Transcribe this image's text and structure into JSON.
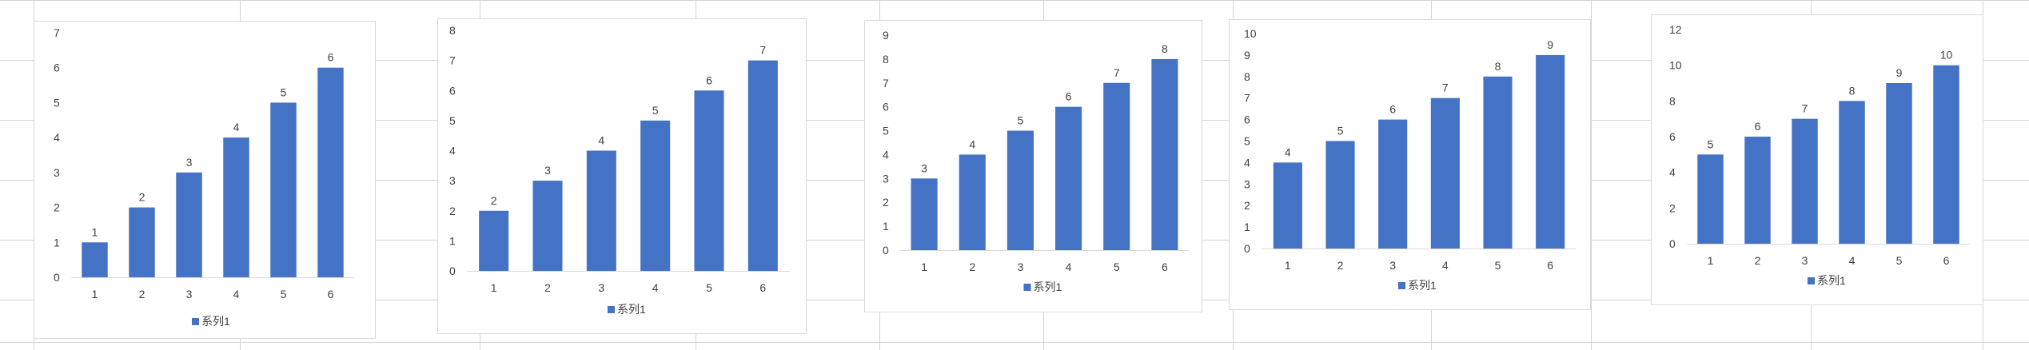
{
  "sheet": {
    "gridline_color": "#d4d4d4"
  },
  "chart_data": [
    {
      "type": "bar",
      "categories": [
        "1",
        "2",
        "3",
        "4",
        "5",
        "6"
      ],
      "series": [
        {
          "name": "系列1",
          "values": [
            1,
            2,
            3,
            4,
            5,
            6
          ],
          "color": "#4472c4"
        }
      ],
      "ylim": [
        0,
        7
      ],
      "yticks": [
        0,
        1,
        2,
        3,
        4,
        5,
        6,
        7
      ],
      "legend": "bottom",
      "grid": false,
      "data_labels": true
    },
    {
      "type": "bar",
      "categories": [
        "1",
        "2",
        "3",
        "4",
        "5",
        "6"
      ],
      "series": [
        {
          "name": "系列1",
          "values": [
            2,
            3,
            4,
            5,
            6,
            7
          ],
          "color": "#4472c4"
        }
      ],
      "ylim": [
        0,
        8
      ],
      "yticks": [
        0,
        1,
        2,
        3,
        4,
        5,
        6,
        7,
        8
      ],
      "legend": "bottom",
      "grid": false,
      "data_labels": true
    },
    {
      "type": "bar",
      "categories": [
        "1",
        "2",
        "3",
        "4",
        "5",
        "6"
      ],
      "series": [
        {
          "name": "系列1",
          "values": [
            3,
            4,
            5,
            6,
            7,
            8
          ],
          "color": "#4472c4"
        }
      ],
      "ylim": [
        0,
        9
      ],
      "yticks": [
        0,
        1,
        2,
        3,
        4,
        5,
        6,
        7,
        8,
        9
      ],
      "legend": "bottom",
      "grid": false,
      "data_labels": true
    },
    {
      "type": "bar",
      "categories": [
        "1",
        "2",
        "3",
        "4",
        "5",
        "6"
      ],
      "series": [
        {
          "name": "系列1",
          "values": [
            4,
            5,
            6,
            7,
            8,
            9
          ],
          "color": "#4472c4"
        }
      ],
      "ylim": [
        0,
        10
      ],
      "yticks": [
        0,
        1,
        2,
        3,
        4,
        5,
        6,
        7,
        8,
        9,
        10
      ],
      "legend": "bottom",
      "grid": false,
      "data_labels": true
    },
    {
      "type": "bar",
      "categories": [
        "1",
        "2",
        "3",
        "4",
        "5",
        "6"
      ],
      "series": [
        {
          "name": "系列1",
          "values": [
            5,
            6,
            7,
            8,
            9,
            10
          ],
          "color": "#4472c4"
        }
      ],
      "ylim": [
        0,
        12
      ],
      "yticks": [
        0,
        2,
        4,
        6,
        8,
        10,
        12
      ],
      "legend": "bottom",
      "grid": false,
      "data_labels": true
    }
  ]
}
